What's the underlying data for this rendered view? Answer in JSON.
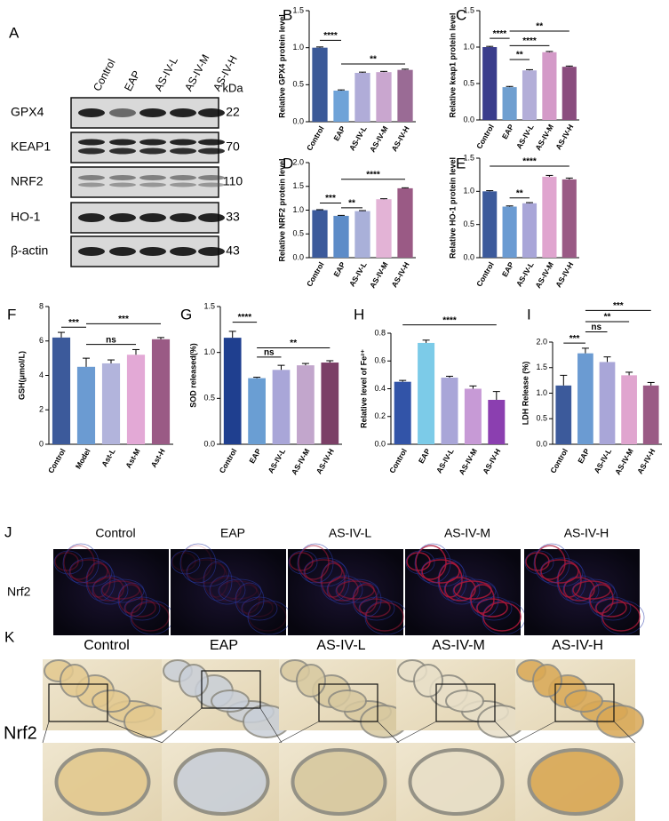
{
  "chart_data": [
    {
      "type": "bar",
      "panel": "B",
      "ylabel": "Relative GPX4 protein level",
      "categories": [
        "Control",
        "EAP",
        "AS-IV-L",
        "AS-IV-M",
        "AS-IV-H"
      ],
      "values": [
        1.0,
        0.42,
        0.66,
        0.67,
        0.7
      ],
      "errors": [
        0.01,
        0.01,
        0.01,
        0.01,
        0.01
      ],
      "colors": [
        "#3b5998",
        "#6fa3d8",
        "#b0acd8",
        "#c9a6cf",
        "#9a6b95"
      ],
      "ylim": [
        0,
        1.5
      ],
      "yticks": [
        {
          "value": 0,
          "label": "0.0"
        },
        0.5,
        {
          "value": 1,
          "label": "1.0"
        },
        1.5
      ],
      "brackets": [
        {
          "label": "****",
          "from": "Control",
          "to": "EAP",
          "y": 1.1
        },
        {
          "label": "**",
          "from": "EAP",
          "to": "AS-IV-H",
          "y": 0.78
        }
      ]
    },
    {
      "type": "bar",
      "panel": "C",
      "ylabel": "Relative keap1 protein level",
      "categories": [
        "Control",
        "EAP",
        "AS-IV-L",
        "AS-IV-M",
        "AS-IV-H"
      ],
      "values": [
        1.0,
        0.45,
        0.68,
        0.93,
        0.73
      ],
      "errors": [
        0.01,
        0.01,
        0.01,
        0.01,
        0.01
      ],
      "colors": [
        "#3a3d8c",
        "#6f9fd0",
        "#b3aed8",
        "#d49ac8",
        "#8a4d7e"
      ],
      "ylim": [
        0,
        1.5
      ],
      "yticks": [
        {
          "value": 0,
          "label": "0.0"
        },
        0.5,
        {
          "value": 1,
          "label": "1.0"
        },
        1.5
      ],
      "brackets": [
        {
          "label": "****",
          "from": "Control",
          "to": "EAP",
          "y": 1.12
        },
        {
          "label": "**",
          "from": "EAP",
          "to": "AS-IV-L",
          "y": 0.83
        },
        {
          "label": "****",
          "from": "EAP",
          "to": "AS-IV-M",
          "y": 1.02
        },
        {
          "label": "**",
          "from": "EAP",
          "to": "AS-IV-H",
          "y": 1.22
        }
      ]
    },
    {
      "type": "bar",
      "panel": "D",
      "ylabel": "Relative NRF2 protein level",
      "categories": [
        "Control",
        "EAP",
        "AS-IV-L",
        "AS-IV-M",
        "AS-IV-H"
      ],
      "values": [
        1.0,
        0.88,
        0.98,
        1.23,
        1.46
      ],
      "errors": [
        0.01,
        0.01,
        0.01,
        0.01,
        0.01
      ],
      "colors": [
        "#3c5a9b",
        "#5d8cc8",
        "#a9b0d9",
        "#e3b3d6",
        "#9a5a85"
      ],
      "ylim": [
        0,
        2.0
      ],
      "yticks": [
        {
          "value": 0,
          "label": "0.0"
        },
        0.5,
        {
          "value": 1,
          "label": "1.0"
        },
        1.5,
        {
          "value": 2,
          "label": "2.0"
        }
      ],
      "brackets": [
        {
          "label": "***",
          "from": "Control",
          "to": "EAP",
          "y": 1.15
        },
        {
          "label": "**",
          "from": "EAP",
          "to": "AS-IV-L",
          "y": 1.05
        },
        {
          "label": "****",
          "from": "EAP",
          "to": "AS-IV-H",
          "y": 1.65
        }
      ]
    },
    {
      "type": "bar",
      "panel": "E",
      "ylabel": "Relative HO-1 protein level",
      "categories": [
        "Control",
        "EAP",
        "AS-IV-L",
        "AS-IV-M",
        "AS-IV-H"
      ],
      "values": [
        1.0,
        0.77,
        0.82,
        1.22,
        1.18
      ],
      "errors": [
        0.01,
        0.01,
        0.01,
        0.02,
        0.02
      ],
      "colors": [
        "#3c5a9b",
        "#6b9bd2",
        "#a9a6d8",
        "#e0a5cf",
        "#9a5a85"
      ],
      "ylim": [
        0,
        1.5
      ],
      "yticks": [
        {
          "value": 0,
          "label": "0.0"
        },
        0.5,
        {
          "value": 1,
          "label": "1.0"
        },
        1.5
      ],
      "brackets": [
        {
          "label": "**",
          "from": "EAP",
          "to": "AS-IV-L",
          "y": 0.9
        },
        {
          "label": "****",
          "from": "Control",
          "to": "AS-IV-H",
          "y": 1.38
        }
      ]
    },
    {
      "type": "bar",
      "panel": "F",
      "ylabel": "GSH(μmol/L)",
      "categories": [
        "Control",
        "Model",
        "Ast-L",
        "Ast-M",
        "Ast-H"
      ],
      "values": [
        6.2,
        4.5,
        4.7,
        5.2,
        6.1
      ],
      "errors": [
        0.3,
        0.5,
        0.2,
        0.3,
        0.1
      ],
      "colors": [
        "#3c5a9b",
        "#6b9bd2",
        "#b2b4dc",
        "#e3a9d6",
        "#9a5a85"
      ],
      "ylim": [
        0,
        8
      ],
      "yticks": [
        0,
        2,
        4,
        6,
        8
      ],
      "brackets": [
        {
          "label": "***",
          "from": "Control",
          "to": "Model",
          "y": 6.8
        },
        {
          "label": "ns",
          "from": "Model",
          "to": "Ast-M",
          "y": 5.8
        },
        {
          "label": "***",
          "from": "Model",
          "to": "Ast-H",
          "y": 7.0
        }
      ]
    },
    {
      "type": "bar",
      "panel": "G",
      "ylabel": "SOD released(%)",
      "categories": [
        "Control",
        "EAP",
        "AS-IV-L",
        "AS-IV-M",
        "AS-IV-H"
      ],
      "values": [
        1.16,
        0.72,
        0.81,
        0.86,
        0.89
      ],
      "errors": [
        0.07,
        0.01,
        0.05,
        0.02,
        0.02
      ],
      "colors": [
        "#1f3f8f",
        "#6a9ed3",
        "#a9a6d8",
        "#c2a6cc",
        "#7b3f66"
      ],
      "ylim": [
        0,
        1.5
      ],
      "yticks": [
        {
          "value": 0,
          "label": "0.0"
        },
        0.5,
        {
          "value": 1,
          "label": "1.0"
        },
        1.5
      ],
      "brackets": [
        {
          "label": "****",
          "from": "Control",
          "to": "EAP",
          "y": 1.33
        },
        {
          "label": "ns",
          "from": "EAP",
          "to": "AS-IV-L",
          "y": 0.95
        },
        {
          "label": "**",
          "from": "EAP",
          "to": "AS-IV-H",
          "y": 1.05
        }
      ]
    },
    {
      "type": "bar",
      "panel": "H",
      "ylabel": "Relative level of Fe²⁺",
      "categories": [
        "Control",
        "EAP",
        "AS-IV-L",
        "AS-IV-M",
        "AS-IV-H"
      ],
      "values": [
        0.45,
        0.73,
        0.48,
        0.4,
        0.32
      ],
      "errors": [
        0.01,
        0.02,
        0.01,
        0.02,
        0.06
      ],
      "colors": [
        "#3254a8",
        "#7ccbe8",
        "#a9a6d8",
        "#c79ad6",
        "#8b3fb0"
      ],
      "ylim": [
        0,
        0.8
      ],
      "yticks": [
        {
          "value": 0,
          "label": "0.0"
        },
        0.2,
        0.4,
        0.6,
        0.8
      ],
      "brackets": [
        {
          "label": "****",
          "from": "Control",
          "to": "AS-IV-H",
          "y": 0.86
        }
      ]
    },
    {
      "type": "bar",
      "panel": "I",
      "ylabel": "LDH Release (%)",
      "categories": [
        "Control",
        "EAP",
        "AS-IV-L",
        "AS-IV-M",
        "AS-IV-H"
      ],
      "values": [
        1.15,
        1.78,
        1.61,
        1.35,
        1.15
      ],
      "errors": [
        0.2,
        0.1,
        0.1,
        0.06,
        0.06
      ],
      "colors": [
        "#3c5a9b",
        "#6b9bd2",
        "#a9a6d8",
        "#e0a5cf",
        "#9a5a85"
      ],
      "ylim": [
        0,
        2.0
      ],
      "yticks": [
        {
          "value": 0,
          "label": "0.0"
        },
        0.5,
        {
          "value": 1,
          "label": "1.0"
        },
        1.5,
        {
          "value": 2,
          "label": "2.0"
        }
      ],
      "brackets": [
        {
          "label": "***",
          "from": "Control",
          "to": "EAP",
          "y": 1.98
        },
        {
          "label": "ns",
          "from": "EAP",
          "to": "AS-IV-L",
          "y": 2.2
        },
        {
          "label": "**",
          "from": "EAP",
          "to": "AS-IV-M",
          "y": 2.4
        },
        {
          "label": "***",
          "from": "EAP",
          "to": "AS-IV-H",
          "y": 2.62
        }
      ]
    }
  ],
  "western_blot": {
    "panel": "A",
    "lanes": [
      "Control",
      "EAP",
      "AS-IV-L",
      "AS-IV-M",
      "AS-IV-H"
    ],
    "unit": "kDa",
    "rows": [
      {
        "protein": "GPX4",
        "kda": 22
      },
      {
        "protein": "KEAP1",
        "kda": 70
      },
      {
        "protein": "NRF2",
        "kda": 110
      },
      {
        "protein": "HO-1",
        "kda": 33
      },
      {
        "protein": "β-actin",
        "kda": 43
      }
    ]
  },
  "if_panel": {
    "panel": "J",
    "stain": "Nrf2",
    "columns": [
      "Control",
      "EAP",
      "AS-IV-L",
      "AS-IV-M",
      "AS-IV-H"
    ]
  },
  "ihc_panel": {
    "panel": "K",
    "stain": "Nrf2",
    "columns": [
      "Control",
      "EAP",
      "AS-IV-L",
      "AS-IV-M",
      "AS-IV-H"
    ]
  }
}
